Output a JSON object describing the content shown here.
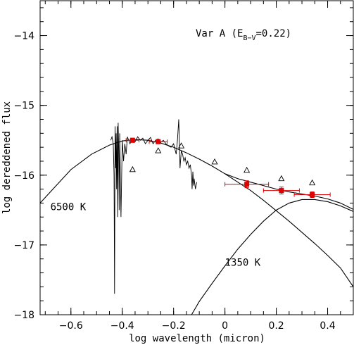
{
  "chart_data": {
    "type": "scatter",
    "xlabel": "log wavelength (micron)",
    "ylabel": "log dereddened flux",
    "xlim": [
      -0.72,
      0.5
    ],
    "ylim": [
      -18,
      -13.5
    ],
    "x_ticks": [
      -0.6,
      -0.4,
      -0.2,
      0,
      0.2,
      0.4
    ],
    "x_tick_labels": [
      "−0.6",
      "−0.4",
      "−0.2",
      "0",
      "0.2",
      "0.4"
    ],
    "y_ticks": [
      -18,
      -17,
      -16,
      -15,
      -14
    ],
    "y_tick_labels": [
      "−18",
      "−17",
      "−16",
      "−15",
      "−14"
    ],
    "grid": false,
    "legend": "none",
    "title": {
      "prefix": "Var A  (E",
      "subscript": "B−V",
      "suffix": "=0.22)"
    },
    "annotations": [
      {
        "text": "6500 K",
        "x": -0.68,
        "y": -16.5
      },
      {
        "text": "1350 K",
        "x": 0.0,
        "y": -17.3
      }
    ],
    "series": [
      {
        "marker": "square",
        "color": "#dd0000",
        "x": [
          -0.36,
          -0.26,
          0.085,
          0.22,
          0.34
        ],
        "y": [
          -15.5,
          -15.52,
          -16.13,
          -16.22,
          -16.28
        ],
        "xerr": [
          0.025,
          0.035,
          0.085,
          0.07,
          0.07
        ],
        "yerr": [
          0.03,
          0.03,
          0.05,
          0.05,
          0.04
        ]
      },
      {
        "marker": "triangle-open",
        "color": "#000000",
        "x": [
          -0.36,
          -0.26,
          -0.17,
          -0.04,
          0.085,
          0.22,
          0.34
        ],
        "y": [
          -15.92,
          -15.65,
          -15.58,
          -15.81,
          -15.93,
          -16.05,
          -16.11
        ]
      }
    ],
    "curves": [
      {
        "name": "6500 K",
        "x": [
          -0.72,
          -0.6,
          -0.52,
          -0.45,
          -0.4,
          -0.35,
          -0.3,
          -0.25,
          -0.2,
          -0.15,
          -0.1,
          -0.05,
          0.0,
          0.05,
          0.1,
          0.15,
          0.2,
          0.25,
          0.3,
          0.35,
          0.4,
          0.45,
          0.5
        ],
        "y": [
          -16.4,
          -15.92,
          -15.7,
          -15.57,
          -15.51,
          -15.49,
          -15.5,
          -15.54,
          -15.6,
          -15.68,
          -15.77,
          -15.87,
          -15.98,
          -16.1,
          -16.22,
          -16.36,
          -16.51,
          -16.66,
          -16.82,
          -16.98,
          -17.15,
          -17.33,
          -17.6
        ]
      },
      {
        "name": "1350 K",
        "x": [
          -0.13,
          -0.1,
          -0.05,
          0.0,
          0.05,
          0.1,
          0.15,
          0.2,
          0.25,
          0.3,
          0.35,
          0.4,
          0.45,
          0.5
        ],
        "y": [
          -18.0,
          -17.81,
          -17.55,
          -17.3,
          -17.06,
          -16.85,
          -16.66,
          -16.5,
          -16.4,
          -16.35,
          -16.35,
          -16.38,
          -16.44,
          -16.52
        ]
      },
      {
        "name": "sum",
        "x": [
          0.0,
          0.05,
          0.1,
          0.15,
          0.2,
          0.25,
          0.3,
          0.35,
          0.4,
          0.45,
          0.5
        ],
        "y": [
          -15.98,
          -16.05,
          -16.1,
          -16.15,
          -16.2,
          -16.24,
          -16.27,
          -16.3,
          -16.34,
          -16.4,
          -16.49
        ]
      }
    ],
    "spectrum": {
      "x": [
        -0.445,
        -0.44,
        -0.435,
        -0.432,
        -0.43,
        -0.428,
        -0.426,
        -0.424,
        -0.422,
        -0.42,
        -0.418,
        -0.416,
        -0.414,
        -0.412,
        -0.41,
        -0.405,
        -0.4,
        -0.395,
        -0.39,
        -0.385,
        -0.38,
        -0.37,
        -0.36,
        -0.35,
        -0.34,
        -0.33,
        -0.32,
        -0.31,
        -0.3,
        -0.29,
        -0.28,
        -0.27,
        -0.26,
        -0.25,
        -0.24,
        -0.23,
        -0.22,
        -0.21,
        -0.2,
        -0.19,
        -0.185,
        -0.18,
        -0.178,
        -0.175,
        -0.17,
        -0.165,
        -0.16,
        -0.155,
        -0.15,
        -0.145,
        -0.14,
        -0.135,
        -0.13,
        -0.128,
        -0.125,
        -0.122,
        -0.12,
        -0.115,
        -0.11
      ],
      "y": [
        -15.5,
        -15.45,
        -15.55,
        -16.0,
        -17.7,
        -15.3,
        -15.9,
        -15.4,
        -16.2,
        -15.3,
        -16.6,
        -15.25,
        -15.6,
        -16.5,
        -15.4,
        -16.6,
        -15.5,
        -15.8,
        -15.55,
        -15.7,
        -15.45,
        -15.55,
        -15.48,
        -15.52,
        -15.45,
        -15.5,
        -15.47,
        -15.55,
        -15.5,
        -15.46,
        -15.55,
        -15.5,
        -15.48,
        -15.53,
        -15.5,
        -15.55,
        -15.58,
        -15.6,
        -15.55,
        -15.7,
        -15.5,
        -15.2,
        -15.45,
        -15.9,
        -15.65,
        -15.7,
        -15.8,
        -15.75,
        -15.85,
        -15.8,
        -15.9,
        -15.85,
        -16.0,
        -16.2,
        -15.95,
        -16.15,
        -16.05,
        -16.2,
        -16.1
      ]
    }
  }
}
